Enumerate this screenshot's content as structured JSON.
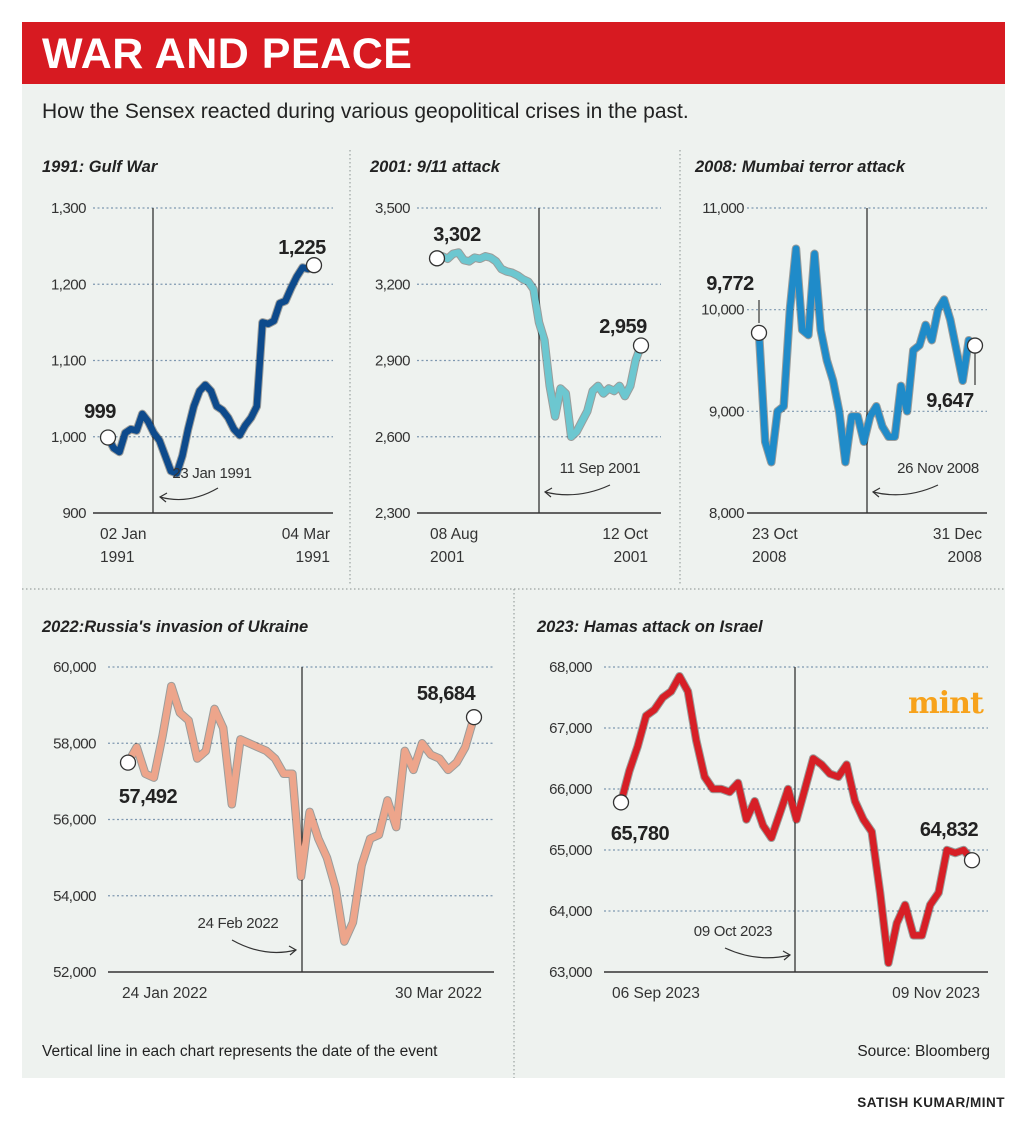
{
  "header": {
    "title": "WAR AND PEACE",
    "subtitle": "How the Sensex reacted during various geopolitical crises in the past."
  },
  "footer": {
    "note": "Vertical line in each chart represents the date of the event",
    "source": "Source: Bloomberg",
    "credit": "SATISH KUMAR/MINT"
  },
  "logo": "mint",
  "colors": {
    "banner": "#d71a21",
    "panel": "#eef2ef",
    "logo": "#f7a21b"
  },
  "chart_data": [
    {
      "type": "line",
      "title": "1991: Gulf War",
      "color": "#0d4a8c",
      "ylim": [
        900,
        1300
      ],
      "yticks": [
        "900",
        "1,000",
        "1,100",
        "1,200",
        "1,300"
      ],
      "ytick_values": [
        900,
        1000,
        1100,
        1200,
        1300
      ],
      "xtick_labels": [
        [
          "02 Jan",
          "1991"
        ],
        [
          "04 Mar",
          "1991"
        ]
      ],
      "event_label": "23 Jan 1991",
      "event_index": 8,
      "start_label": "999",
      "end_label": "1,225",
      "grid": true,
      "values": [
        999,
        985,
        980,
        1005,
        1010,
        1008,
        1030,
        1020,
        1005,
        995,
        975,
        955,
        952,
        975,
        1010,
        1040,
        1060,
        1068,
        1060,
        1040,
        1035,
        1025,
        1010,
        1002,
        1015,
        1025,
        1040,
        1150,
        1148,
        1152,
        1175,
        1178,
        1195,
        1210,
        1222,
        1220,
        1225
      ]
    },
    {
      "type": "line",
      "title": "2001: 9/11 attack",
      "color": "#6cc7d0",
      "ylim": [
        2300,
        3500
      ],
      "yticks": [
        "2,300",
        "2,600",
        "2,900",
        "3,200",
        "3,500"
      ],
      "ytick_values": [
        2300,
        2600,
        2900,
        3200,
        3500
      ],
      "xtick_labels": [
        [
          "08 Aug",
          "2001"
        ],
        [
          "12 Oct",
          "2001"
        ]
      ],
      "event_label": "11 Sep 2001",
      "event_index": 19,
      "start_label": "3,302",
      "end_label": "2,959",
      "grid": true,
      "values": [
        3302,
        3310,
        3300,
        3320,
        3325,
        3295,
        3290,
        3305,
        3300,
        3310,
        3305,
        3290,
        3260,
        3250,
        3245,
        3235,
        3220,
        3210,
        3180,
        3050,
        2980,
        2800,
        2680,
        2790,
        2770,
        2600,
        2620,
        2660,
        2700,
        2780,
        2800,
        2770,
        2790,
        2780,
        2800,
        2760,
        2800,
        2900,
        2959
      ]
    },
    {
      "type": "line",
      "title": "2008: Mumbai terror attack",
      "color": "#1f8bc9",
      "ylim": [
        8000,
        11000
      ],
      "yticks": [
        "8,000",
        "9,000",
        "10,000",
        "11,000"
      ],
      "ytick_values": [
        8000,
        9000,
        10000,
        11000
      ],
      "xtick_labels": [
        [
          "23 Oct",
          "2008"
        ],
        [
          "31 Dec",
          "2008"
        ]
      ],
      "event_label": "26 Nov 2008",
      "event_index": 17.5,
      "start_label": "9,772",
      "end_label": "9,647",
      "grid": true,
      "values": [
        9772,
        8700,
        8500,
        9000,
        9050,
        10000,
        10600,
        9800,
        9750,
        10550,
        9800,
        9500,
        9300,
        9000,
        8500,
        8950,
        8950,
        8700,
        8950,
        9050,
        8850,
        8750,
        8750,
        9250,
        9000,
        9600,
        9650,
        9850,
        9700,
        10000,
        10100,
        9900,
        9600,
        9300,
        9700,
        9647
      ]
    },
    {
      "type": "line",
      "title": "2022:Russia's invasion of Ukraine",
      "color": "#eda58b",
      "ylim": [
        52000,
        60000
      ],
      "yticks": [
        "52,000",
        "54,000",
        "56,000",
        "58,000",
        "60,000"
      ],
      "ytick_values": [
        52000,
        54000,
        56000,
        58000,
        60000
      ],
      "xtick_labels": [
        [
          "24 Jan 2022"
        ],
        [
          "30 Mar 2022"
        ]
      ],
      "event_label": "24 Feb 2022",
      "event_index": 20,
      "start_label": "57,492",
      "end_label": "58,684",
      "grid": true,
      "values": [
        57492,
        57900,
        57200,
        57100,
        58200,
        59500,
        58800,
        58600,
        57600,
        57800,
        58900,
        58400,
        56400,
        58100,
        58000,
        57900,
        57800,
        57600,
        57200,
        57200,
        54500,
        56200,
        55500,
        55000,
        54200,
        52800,
        53300,
        54800,
        55500,
        55600,
        56500,
        55800,
        57800,
        57300,
        58000,
        57700,
        57600,
        57300,
        57500,
        57900,
        58684
      ]
    },
    {
      "type": "line",
      "title": "2023: Hamas attack on Israel",
      "color": "#d71f26",
      "ylim": [
        63000,
        68000
      ],
      "yticks": [
        "63,000",
        "64,000",
        "65,000",
        "66,000",
        "67,000",
        "68,000"
      ],
      "ytick_values": [
        63000,
        64000,
        65000,
        66000,
        67000,
        68000
      ],
      "xtick_labels": [
        [
          "06 Sep 2023"
        ],
        [
          "09 Nov 2023"
        ]
      ],
      "event_label": "09 Oct 2023",
      "event_index": 21,
      "start_label": "65,780",
      "end_label": "64,832",
      "grid": true,
      "values": [
        65780,
        66300,
        66700,
        67200,
        67300,
        67500,
        67600,
        67850,
        67600,
        66800,
        66200,
        66000,
        66000,
        65950,
        66100,
        65500,
        65800,
        65400,
        65200,
        65600,
        66000,
        65500,
        66000,
        66500,
        66400,
        66250,
        66200,
        66400,
        65800,
        65500,
        65300,
        64300,
        63150,
        63800,
        64100,
        63600,
        63600,
        64100,
        64300,
        65000,
        64950,
        65000,
        64832
      ]
    }
  ]
}
